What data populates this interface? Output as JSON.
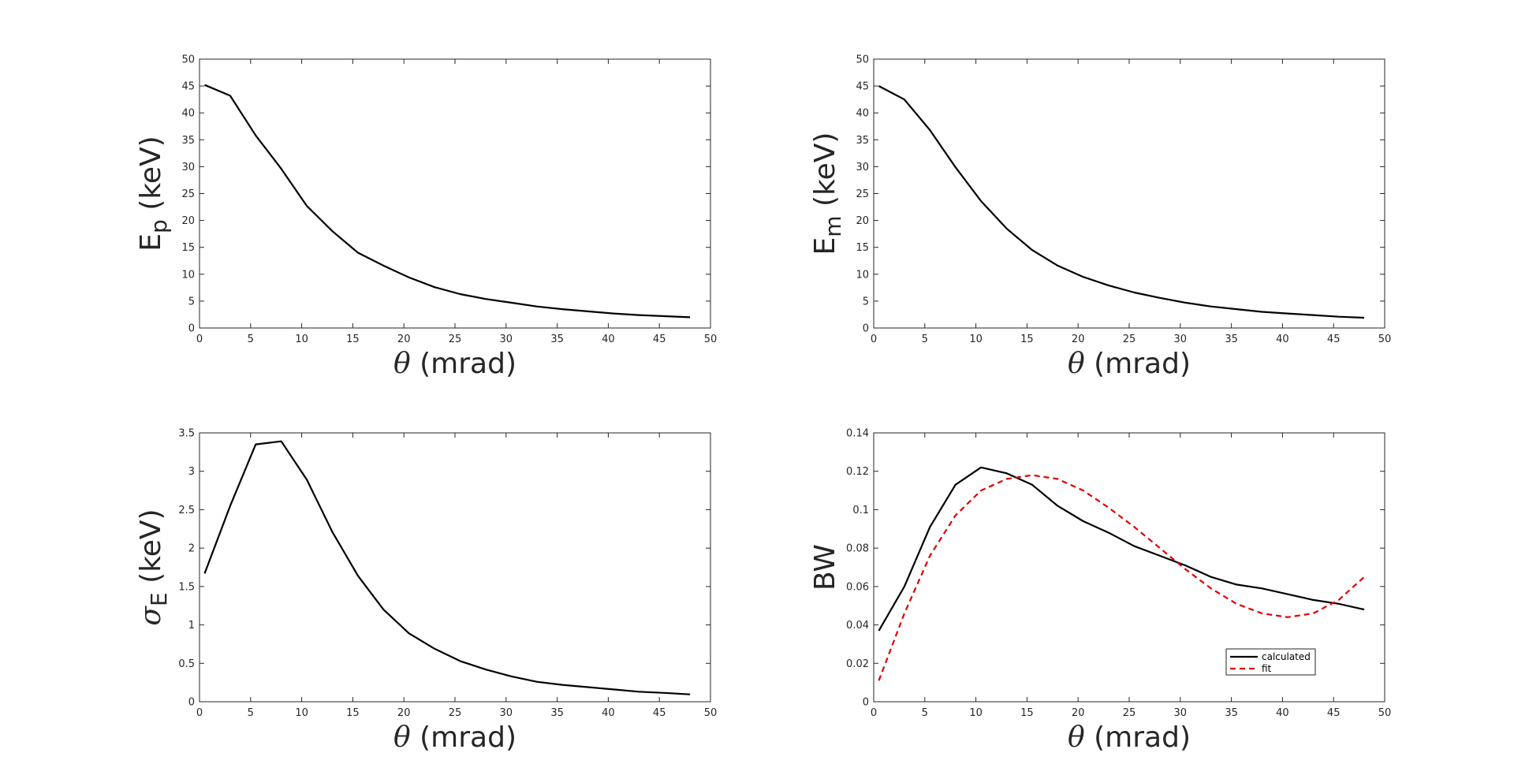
{
  "chart_data": [
    {
      "type": "line",
      "xlabel_symbol": "θ",
      "xlabel_rest": " (mrad)",
      "ylabel_main": "E",
      "ylabel_sub": "p",
      "ylabel_rest": " (keV)",
      "xlim": [
        0,
        50
      ],
      "ylim": [
        0,
        50
      ],
      "xticks": [
        "0",
        "5",
        "10",
        "15",
        "20",
        "25",
        "30",
        "35",
        "40",
        "45",
        "50"
      ],
      "yticks": [
        "0",
        "5",
        "10",
        "15",
        "20",
        "25",
        "30",
        "35",
        "40",
        "45",
        "50"
      ],
      "grid": false,
      "series": [
        {
          "color": "#000000",
          "dash": "solid",
          "x": [
            0.5,
            3,
            5.5,
            8,
            10.5,
            13,
            15.5,
            18,
            20.5,
            23,
            25.5,
            28,
            30.5,
            33,
            35.5,
            38,
            40.5,
            43,
            45.5,
            48
          ],
          "y": [
            45.2,
            43.2,
            35.8,
            29.6,
            22.7,
            18.0,
            14.0,
            11.6,
            9.4,
            7.6,
            6.3,
            5.4,
            4.7,
            4.0,
            3.5,
            3.1,
            2.7,
            2.4,
            2.2,
            2.0
          ]
        }
      ]
    },
    {
      "type": "line",
      "xlabel_symbol": "θ",
      "xlabel_rest": " (mrad)",
      "ylabel_main": "E",
      "ylabel_sub": "m",
      "ylabel_rest": " (keV)",
      "xlim": [
        0,
        50
      ],
      "ylim": [
        0,
        50
      ],
      "xticks": [
        "0",
        "5",
        "10",
        "15",
        "20",
        "25",
        "30",
        "35",
        "40",
        "45",
        "50"
      ],
      "yticks": [
        "0",
        "5",
        "10",
        "15",
        "20",
        "25",
        "30",
        "35",
        "40",
        "45",
        "50"
      ],
      "grid": false,
      "series": [
        {
          "color": "#000000",
          "dash": "solid",
          "x": [
            0.5,
            3,
            5.5,
            8,
            10.5,
            13,
            15.5,
            18,
            20.5,
            23,
            25.5,
            28,
            30.5,
            33,
            35.5,
            38,
            40.5,
            43,
            45.5,
            48
          ],
          "y": [
            45.0,
            42.5,
            36.8,
            29.9,
            23.6,
            18.5,
            14.5,
            11.6,
            9.5,
            7.9,
            6.6,
            5.6,
            4.7,
            4.0,
            3.5,
            3.0,
            2.7,
            2.4,
            2.1,
            1.9
          ]
        }
      ]
    },
    {
      "type": "line",
      "xlabel_symbol": "θ",
      "xlabel_rest": " (mrad)",
      "ylabel_main": "σ",
      "ylabel_sub": "E",
      "ylabel_rest": " (keV)",
      "xlim": [
        0,
        50
      ],
      "ylim": [
        0,
        3.5
      ],
      "xticks": [
        "0",
        "5",
        "10",
        "15",
        "20",
        "25",
        "30",
        "35",
        "40",
        "45",
        "50"
      ],
      "yticks": [
        "0",
        "0.5",
        "1",
        "1.5",
        "2",
        "2.5",
        "3",
        "3.5"
      ],
      "grid": false,
      "series": [
        {
          "color": "#000000",
          "dash": "solid",
          "x": [
            0.5,
            3,
            5.5,
            8,
            10.5,
            13,
            15.5,
            18,
            20.5,
            23,
            25.5,
            28,
            30.5,
            33,
            35.5,
            38,
            40.5,
            43,
            45.5,
            48
          ],
          "y": [
            1.67,
            2.55,
            3.35,
            3.39,
            2.89,
            2.21,
            1.64,
            1.2,
            0.89,
            0.69,
            0.53,
            0.42,
            0.33,
            0.26,
            0.22,
            0.19,
            0.16,
            0.13,
            0.115,
            0.095
          ]
        }
      ]
    },
    {
      "type": "line",
      "xlabel_symbol": "θ",
      "xlabel_rest": " (mrad)",
      "ylabel_main": "BW",
      "ylabel_sub": "",
      "ylabel_rest": "",
      "xlim": [
        0,
        50
      ],
      "ylim": [
        0,
        0.14
      ],
      "xticks": [
        "0",
        "5",
        "10",
        "15",
        "20",
        "25",
        "30",
        "35",
        "40",
        "45",
        "50"
      ],
      "yticks": [
        "0",
        "0.02",
        "0.04",
        "0.06",
        "0.08",
        "0.1",
        "0.12",
        "0.14"
      ],
      "grid": false,
      "legend": {
        "placement": "bottom-right"
      },
      "series": [
        {
          "name": "calculated",
          "color": "#000000",
          "dash": "solid",
          "x": [
            0.5,
            3,
            5.5,
            8,
            10.5,
            13,
            15.5,
            18,
            20.5,
            23,
            25.5,
            28,
            30.5,
            33,
            35.5,
            38,
            40.5,
            43,
            45.5,
            48
          ],
          "y": [
            0.037,
            0.06,
            0.091,
            0.113,
            0.122,
            0.119,
            0.113,
            0.102,
            0.094,
            0.088,
            0.081,
            0.076,
            0.071,
            0.065,
            0.061,
            0.059,
            0.056,
            0.053,
            0.051,
            0.048
          ]
        },
        {
          "name": "fit",
          "color": "#e00000",
          "dash": "dashed",
          "x": [
            0.5,
            3,
            5.5,
            8,
            10.5,
            13,
            15.5,
            18,
            20.5,
            23,
            25.5,
            28,
            30.5,
            33,
            35.5,
            38,
            40.5,
            43,
            45.5,
            48
          ],
          "y": [
            0.011,
            0.046,
            0.076,
            0.097,
            0.11,
            0.116,
            0.118,
            0.116,
            0.11,
            0.101,
            0.091,
            0.08,
            0.069,
            0.059,
            0.051,
            0.046,
            0.044,
            0.046,
            0.053,
            0.065
          ]
        }
      ]
    }
  ]
}
